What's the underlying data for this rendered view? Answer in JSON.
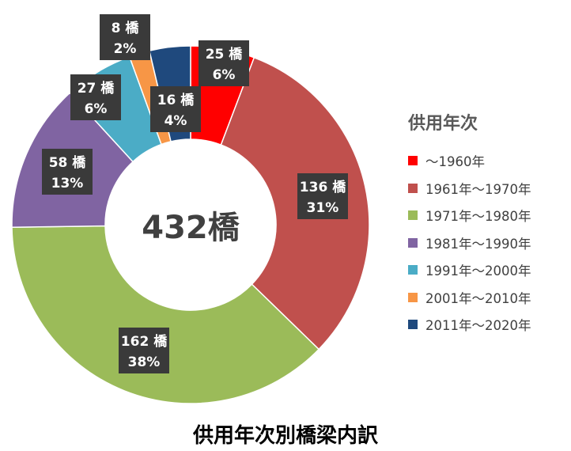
{
  "chart_data": {
    "type": "donut",
    "title": "供用年次別橋梁内訳",
    "center_label": "432橋",
    "legend_title": "供用年次",
    "legend_position": "right",
    "series": [
      {
        "name": "～1960年",
        "count": 25,
        "count_label": "25 橋",
        "percent": 6,
        "percent_label": "6%",
        "color": "#FF0000"
      },
      {
        "name": "1961年～1970年",
        "count": 136,
        "count_label": "136 橋",
        "percent": 31,
        "percent_label": "31%",
        "color": "#C0504D"
      },
      {
        "name": "1971年～1980年",
        "count": 162,
        "count_label": "162 橋",
        "percent": 38,
        "percent_label": "38%",
        "color": "#9BBB59"
      },
      {
        "name": "1981年～1990年",
        "count": 58,
        "count_label": "58 橋",
        "percent": 13,
        "percent_label": "13%",
        "color": "#8064A2"
      },
      {
        "name": "1991年～2000年",
        "count": 27,
        "count_label": "27 橋",
        "percent": 6,
        "percent_label": "6%",
        "color": "#4BACC6"
      },
      {
        "name": "2001年～2010年",
        "count": 8,
        "count_label": "8 橋",
        "percent": 2,
        "percent_label": "2%",
        "color": "#F79646"
      },
      {
        "name": "2011年～2020年",
        "count": 16,
        "count_label": "16 橋",
        "percent": 4,
        "percent_label": "4%",
        "color": "#1F497D"
      }
    ]
  }
}
